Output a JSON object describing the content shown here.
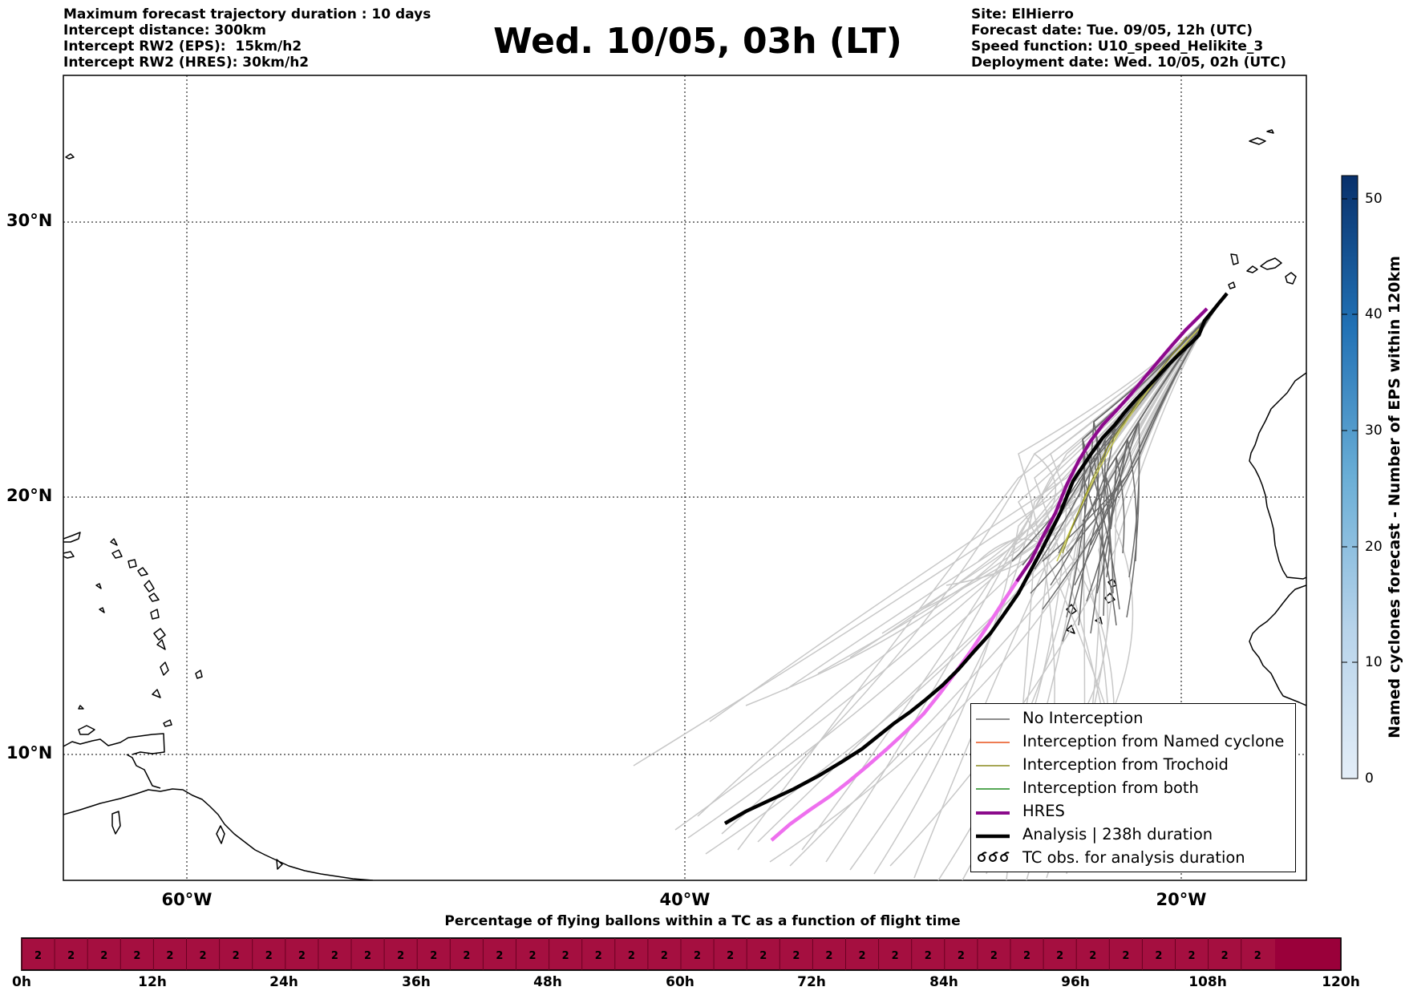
{
  "header_left": [
    "Maximum forecast trajectory duration : 10 days",
    "Intercept distance: 300km",
    "Intercept RW2 (EPS):  15km/h2",
    "Intercept RW2 (HRES): 30km/h2"
  ],
  "title": "Wed. 10/05, 03h (LT)",
  "header_right": [
    "Site: ElHierro",
    "Forecast date: Tue. 09/05, 12h (UTC)",
    "Speed function: U10_speed_Helikite_3",
    "Deployment date: Wed. 10/05, 02h (UTC)"
  ],
  "map": {
    "lat_labels": [
      "30°N",
      "20°N",
      "10°N"
    ],
    "lon_labels": [
      "60°W",
      "40°W",
      "20°W"
    ],
    "colors": {
      "no_interception": "#666666",
      "eps_light": "#c8c8c8",
      "named_cyclone": "#e8501a",
      "trochoid": "#8a8a1e",
      "both": "#1e8a1e",
      "hres": "#8b0a8b",
      "hres_early": "#ee6fee",
      "analysis": "#000000"
    }
  },
  "legend": {
    "items": [
      {
        "label": "No Interception",
        "icon": "gray-line-icon"
      },
      {
        "label": "Interception from Named cyclone",
        "icon": "orange-line-icon"
      },
      {
        "label": "Interception from Trochoid",
        "icon": "olive-line-icon"
      },
      {
        "label": "Interception from both",
        "icon": "green-line-icon"
      },
      {
        "label": "HRES",
        "icon": "purple-thick-line-icon"
      },
      {
        "label": "Analysis | 238h duration",
        "icon": "black-thick-line-icon"
      },
      {
        "label": "TC obs. for analysis duration",
        "icon": "cyclone-symbol-icon"
      }
    ]
  },
  "colorbar": {
    "label": "Named cyclones forecast - Number of EPS within 120km",
    "ticks": [
      "0",
      "10",
      "20",
      "30",
      "40",
      "50"
    ],
    "min": 0,
    "max": 52,
    "color_low": "#e4eef8",
    "color_high": "#08306b"
  },
  "timeline": {
    "caption": "Percentage of flying ballons within a TC as a function of flight time",
    "ticks": [
      "0h",
      "12h",
      "24h",
      "36h",
      "48h",
      "60h",
      "72h",
      "84h",
      "96h",
      "108h",
      "120h"
    ],
    "cell_value": "2",
    "cell_count": 38,
    "bar_color": "#a50f40",
    "end_color": "#9a003a"
  }
}
